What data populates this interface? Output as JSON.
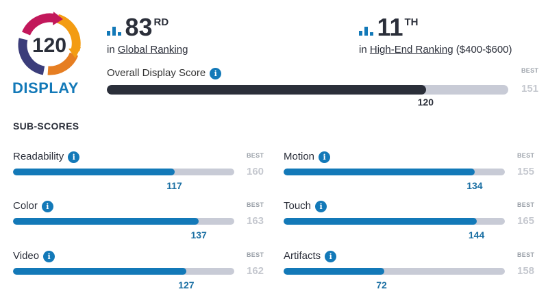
{
  "badge": {
    "score": "120",
    "label": "DISPLAY"
  },
  "global_rank": {
    "number": "83",
    "suffix": "RD",
    "prefix": "in",
    "link": "Global Ranking"
  },
  "segment_rank": {
    "number": "11",
    "suffix": "TH",
    "prefix": "in",
    "link": "High-End Ranking",
    "range": "($400-$600)"
  },
  "overall": {
    "label": "Overall Display Score",
    "score": 120,
    "best_label": "BEST",
    "best": 151
  },
  "subscores_title": "SUB-SCORES",
  "subscores": [
    {
      "label": "Readability",
      "score": 117,
      "best_label": "BEST",
      "best": 160
    },
    {
      "label": "Motion",
      "score": 134,
      "best_label": "BEST",
      "best": 155
    },
    {
      "label": "Color",
      "score": 137,
      "best_label": "BEST",
      "best": 163
    },
    {
      "label": "Touch",
      "score": 144,
      "best_label": "BEST",
      "best": 165
    },
    {
      "label": "Video",
      "score": 127,
      "best_label": "BEST",
      "best": 162
    },
    {
      "label": "Artifacts",
      "score": 72,
      "best_label": "BEST",
      "best": 158
    }
  ],
  "colors": {
    "accent": "#1379b8",
    "dark_bar": "#2b2f3a",
    "track": "#c8cbd6"
  }
}
